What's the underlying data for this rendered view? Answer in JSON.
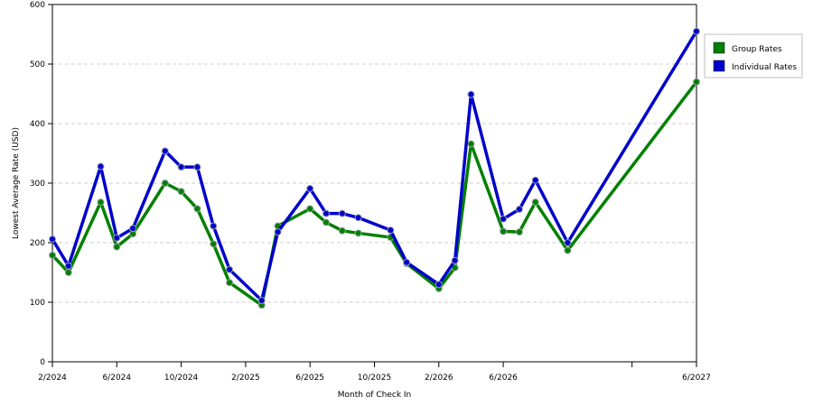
{
  "chart_data": {
    "type": "line",
    "title": "",
    "xlabel": "Month of Check In",
    "ylabel": "Lowest Average Rate (USD)",
    "ylim": [
      0,
      600
    ],
    "y_ticks": [
      0,
      100,
      200,
      300,
      400,
      500,
      600
    ],
    "x_tick_labels": [
      "2/2024",
      "6/2024",
      "10/2024",
      "2/2025",
      "6/2025",
      "10/2025",
      "2/2026",
      "6/2026",
      "",
      "6/2027"
    ],
    "x": [
      "2/2024",
      "3/2024",
      "4/2024",
      "5/2024",
      "6/2024",
      "7/2024",
      "8/2024",
      "9/2024",
      "10/2024",
      "11/2024",
      "12/2024",
      "1/2025",
      "2/2025",
      "3/2025",
      "4/2025",
      "5/2025",
      "6/2025",
      "7/2025",
      "8/2025",
      "9/2025",
      "10/2025",
      "11/2025",
      "12/2025",
      "1/2026",
      "2/2026",
      "3/2026",
      "4/2026",
      "5/2026",
      "6/2026",
      "7/2026",
      "8/2026",
      "9/2026",
      "10/2026",
      "11/2026",
      "12/2026",
      "1/2027",
      "2/2027",
      "3/2027",
      "4/2027",
      "5/2027",
      "6/2027"
    ],
    "grid": true,
    "legend": "right",
    "series": [
      {
        "name": "Group Rates",
        "color": "#008000",
        "points": [
          [
            "2/2024",
            179
          ],
          [
            "3/2024",
            150
          ],
          [
            "5/2024",
            268
          ],
          [
            "6/2024",
            193
          ],
          [
            "7/2024",
            215
          ],
          [
            "9/2024",
            300
          ],
          [
            "10/2024",
            286
          ],
          [
            "11/2024",
            257
          ],
          [
            "12/2024",
            198
          ],
          [
            "1/2025",
            133
          ],
          [
            "3/2025",
            95
          ],
          [
            "4/2025",
            228
          ],
          [
            "6/2025",
            257
          ],
          [
            "7/2025",
            234
          ],
          [
            "8/2025",
            220
          ],
          [
            "9/2025",
            216
          ],
          [
            "11/2025",
            209
          ],
          [
            "12/2025",
            165
          ],
          [
            "2/2026",
            123
          ],
          [
            "3/2026",
            158
          ],
          [
            "4/2026",
            366
          ],
          [
            "6/2026",
            219
          ],
          [
            "7/2026",
            218
          ],
          [
            "8/2026",
            268
          ],
          [
            "10/2026",
            187
          ],
          [
            "6/2027",
            470
          ]
        ]
      },
      {
        "name": "Individual Rates",
        "color": "#0000cc",
        "points": [
          [
            "2/2024",
            206
          ],
          [
            "3/2024",
            161
          ],
          [
            "5/2024",
            328
          ],
          [
            "6/2024",
            208
          ],
          [
            "7/2024",
            224
          ],
          [
            "9/2024",
            354
          ],
          [
            "10/2024",
            327
          ],
          [
            "11/2024",
            327
          ],
          [
            "12/2024",
            228
          ],
          [
            "1/2025",
            155
          ],
          [
            "3/2025",
            103
          ],
          [
            "4/2025",
            218
          ],
          [
            "6/2025",
            291
          ],
          [
            "7/2025",
            249
          ],
          [
            "8/2025",
            249
          ],
          [
            "9/2025",
            242
          ],
          [
            "11/2025",
            221
          ],
          [
            "12/2025",
            167
          ],
          [
            "2/2026",
            130
          ],
          [
            "3/2026",
            170
          ],
          [
            "4/2026",
            449
          ],
          [
            "6/2026",
            240
          ],
          [
            "7/2026",
            256
          ],
          [
            "8/2026",
            305
          ],
          [
            "10/2026",
            200
          ],
          [
            "6/2027",
            555
          ]
        ]
      }
    ]
  }
}
